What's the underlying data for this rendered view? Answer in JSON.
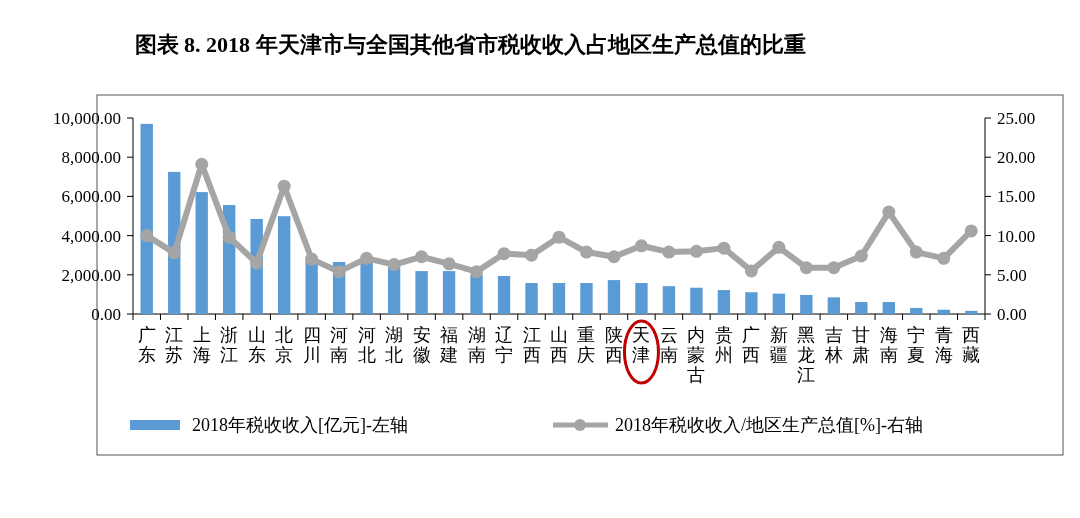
{
  "chart_data": {
    "type": "bar",
    "title": "图表 8. 2018 年天津市与全国其他省市税收收入占地区生产总值的比重",
    "categories": [
      "广东",
      "江苏",
      "上海",
      "浙江",
      "山东",
      "北京",
      "四川",
      "河南",
      "河北",
      "湖北",
      "安徽",
      "福建",
      "湖南",
      "辽宁",
      "江西",
      "山西",
      "重庆",
      "陕西",
      "天津",
      "云南",
      "内蒙古",
      "贵州",
      "广西",
      "新疆",
      "黑龙江",
      "吉林",
      "甘肃",
      "海南",
      "宁夏",
      "青海",
      "西藏"
    ],
    "series": [
      {
        "name": "2018年税收收入[亿元]-左轴",
        "color": "#5b9bd5",
        "values": [
          9700,
          7250,
          6220,
          5560,
          4850,
          4990,
          2750,
          2650,
          2700,
          2400,
          2190,
          2190,
          2000,
          1940,
          1580,
          1580,
          1580,
          1730,
          1580,
          1420,
          1340,
          1220,
          1110,
          1040,
          970,
          850,
          610,
          610,
          310,
          220,
          160
        ]
      },
      {
        "name": "2018年税收收入/地区生产总值[%]-右轴",
        "type": "line",
        "axis": "y2",
        "color": "#a5a5a5",
        "marker": "circle",
        "values": [
          10.0,
          7.8,
          19.1,
          9.8,
          6.5,
          16.3,
          7.0,
          5.4,
          7.1,
          6.3,
          7.3,
          6.4,
          5.4,
          7.7,
          7.5,
          9.8,
          7.9,
          7.3,
          8.7,
          7.9,
          8.0,
          8.4,
          5.5,
          8.5,
          5.9,
          5.9,
          7.4,
          13.0,
          7.9,
          7.1,
          10.6
        ]
      }
    ],
    "ylim": [
      0,
      10000
    ],
    "yticks": [
      {
        "value": 0,
        "label": "0.00"
      },
      {
        "value": 2000,
        "label": "2,000.00"
      },
      {
        "value": 4000,
        "label": "4,000.00"
      },
      {
        "value": 6000,
        "label": "6,000.00"
      },
      {
        "value": 8000,
        "label": "8,000.00"
      },
      {
        "value": 10000,
        "label": "10,000.00"
      }
    ],
    "y2lim": [
      0,
      25
    ],
    "y2ticks": [
      {
        "value": 0,
        "label": "0.00"
      },
      {
        "value": 5,
        "label": "5.00"
      },
      {
        "value": 10,
        "label": "10.00"
      },
      {
        "value": 15,
        "label": "15.00"
      },
      {
        "value": 20,
        "label": "20.00"
      },
      {
        "value": 25,
        "label": "25.00"
      }
    ],
    "grid": false,
    "legend": "bottom"
  }
}
